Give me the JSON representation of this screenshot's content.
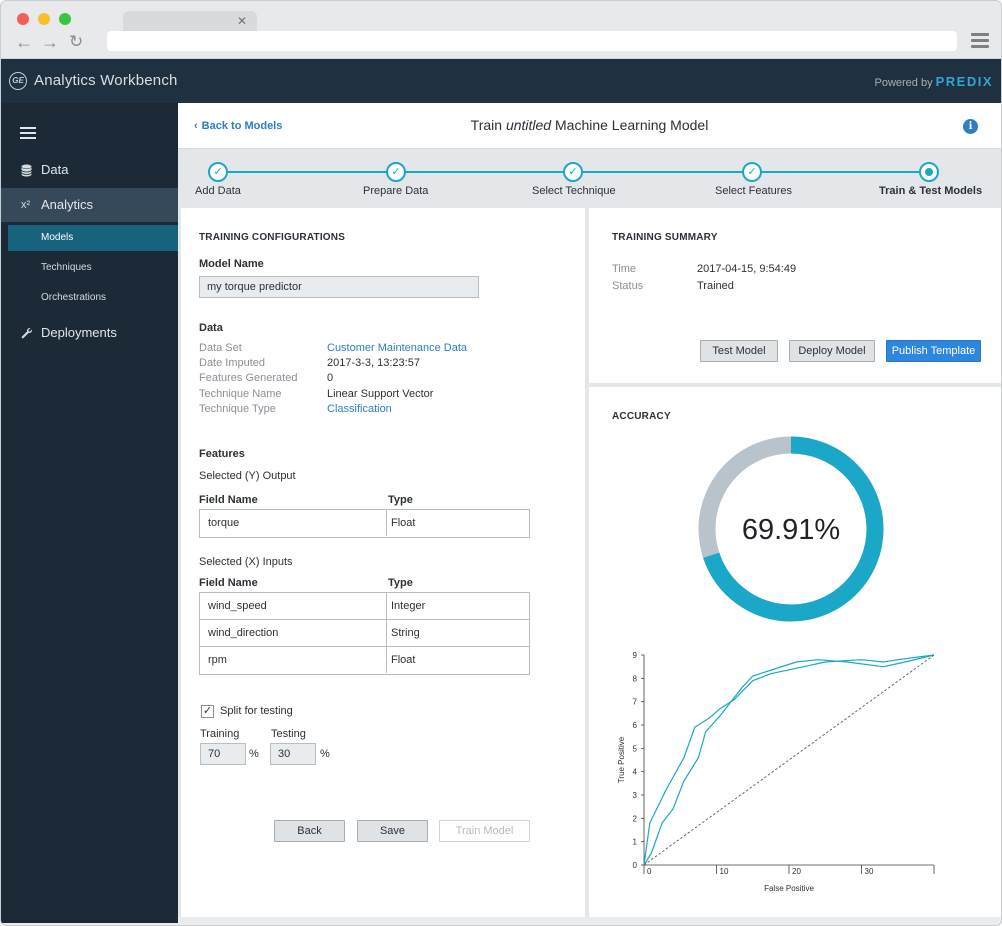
{
  "app": {
    "title": "Analytics Workbench",
    "logo_text": "GE",
    "powered_by": "Powered by",
    "brand": "PREDIX"
  },
  "sidebar": {
    "items": [
      {
        "label": "Data",
        "icon": "database-icon"
      },
      {
        "label": "Analytics",
        "icon": "x-squared-icon",
        "icon_text": "x²",
        "active": true
      },
      {
        "label": "Deployments",
        "icon": "wrench-icon"
      }
    ],
    "sub_items": [
      {
        "label": "Models",
        "active": true
      },
      {
        "label": "Techniques"
      },
      {
        "label": "Orchestrations"
      }
    ]
  },
  "header": {
    "back_link": "Back to Models",
    "title_pre": "Train ",
    "title_em": "untitled",
    "title_post": " Machine Learning Model"
  },
  "stepper": {
    "steps": [
      {
        "label": "Add Data",
        "state": "done"
      },
      {
        "label": "Prepare Data",
        "state": "done"
      },
      {
        "label": "Select Technique",
        "state": "done"
      },
      {
        "label": "Select Features",
        "state": "done"
      },
      {
        "label": "Train & Test Models",
        "state": "current"
      }
    ],
    "accent": "#1ba7c8"
  },
  "training_config": {
    "title": "TRAINING CONFIGURATIONS",
    "model_name_label": "Model Name",
    "model_name_value": "my torque predictor",
    "data_title": "Data",
    "data_rows": [
      {
        "key": "Data Set",
        "value": "Customer Maintenance Data",
        "link": true
      },
      {
        "key": "Date Imputed",
        "value": "2017-3-3, 13:23:57"
      },
      {
        "key": "Features Generated",
        "value": "0"
      },
      {
        "key": "Technique Name",
        "value": "Linear Support Vector"
      },
      {
        "key": "Technique Type",
        "value": "Classification",
        "link": true
      }
    ],
    "features_title": "Features",
    "output_label": "Selected (Y) Output",
    "inputs_label": "Selected (X) Inputs",
    "col_field": "Field Name",
    "col_type": "Type",
    "output_rows": [
      {
        "field": "torque",
        "type": "Float"
      }
    ],
    "input_rows": [
      {
        "field": "wind_speed",
        "type": "Integer"
      },
      {
        "field": "wind_direction",
        "type": "String"
      },
      {
        "field": "rpm",
        "type": "Float"
      }
    ],
    "split_label": "Split for testing",
    "split_checked": true,
    "training_label": "Training",
    "training_value": "70",
    "testing_label": "Testing",
    "testing_value": "30",
    "percent": "%",
    "buttons": {
      "back": "Back",
      "save": "Save",
      "train": "Train Model"
    }
  },
  "training_summary": {
    "title": "TRAINING SUMMARY",
    "rows": [
      {
        "key": "Time",
        "value": "2017-04-15, 9:54:49"
      },
      {
        "key": "Status",
        "value": "Trained"
      }
    ],
    "buttons": {
      "test": "Test Model",
      "deploy": "Deploy Model",
      "publish": "Publish Template"
    }
  },
  "accuracy": {
    "title": "ACCURACY",
    "value_text": "69.91%",
    "value": 69.91,
    "color_fill": "#1ba7c8",
    "color_track": "#b9c3cb"
  },
  "chart_data": {
    "type": "line",
    "xlabel": "False Positive",
    "ylabel": "True Positive",
    "xlim": [
      0,
      40
    ],
    "ylim": [
      0,
      9
    ],
    "x_ticks": [
      "0",
      "10",
      "20",
      "30"
    ],
    "y_ticks": [
      "0",
      "1",
      "2",
      "3",
      "4",
      "5",
      "6",
      "7",
      "8",
      "9"
    ],
    "series": [
      {
        "x": [
          0,
          0.8,
          3,
          5.5,
          7,
          9,
          10.5,
          12.5,
          15,
          17.5,
          22,
          25,
          30,
          33,
          35,
          40
        ],
        "y": [
          0,
          1.8,
          3.2,
          4.6,
          5.9,
          6.3,
          6.7,
          7.1,
          7.9,
          8.2,
          8.5,
          8.7,
          8.8,
          8.7,
          8.8,
          9
        ],
        "color": "#1ba7c8"
      },
      {
        "x": [
          0,
          1,
          2.5,
          4,
          5.5,
          7.5,
          8.5,
          10.5,
          13.5,
          15,
          18,
          21,
          24,
          28,
          33,
          36,
          40
        ],
        "y": [
          0,
          0.5,
          1.8,
          2.4,
          3.6,
          4.6,
          5.7,
          6.4,
          7.6,
          8.1,
          8.4,
          8.7,
          8.8,
          8.7,
          8.5,
          8.7,
          9
        ],
        "color": "#1ba7c8"
      },
      {
        "x": [
          0,
          40
        ],
        "y": [
          0,
          9
        ],
        "color": "#555b61",
        "dashed": true
      }
    ]
  }
}
